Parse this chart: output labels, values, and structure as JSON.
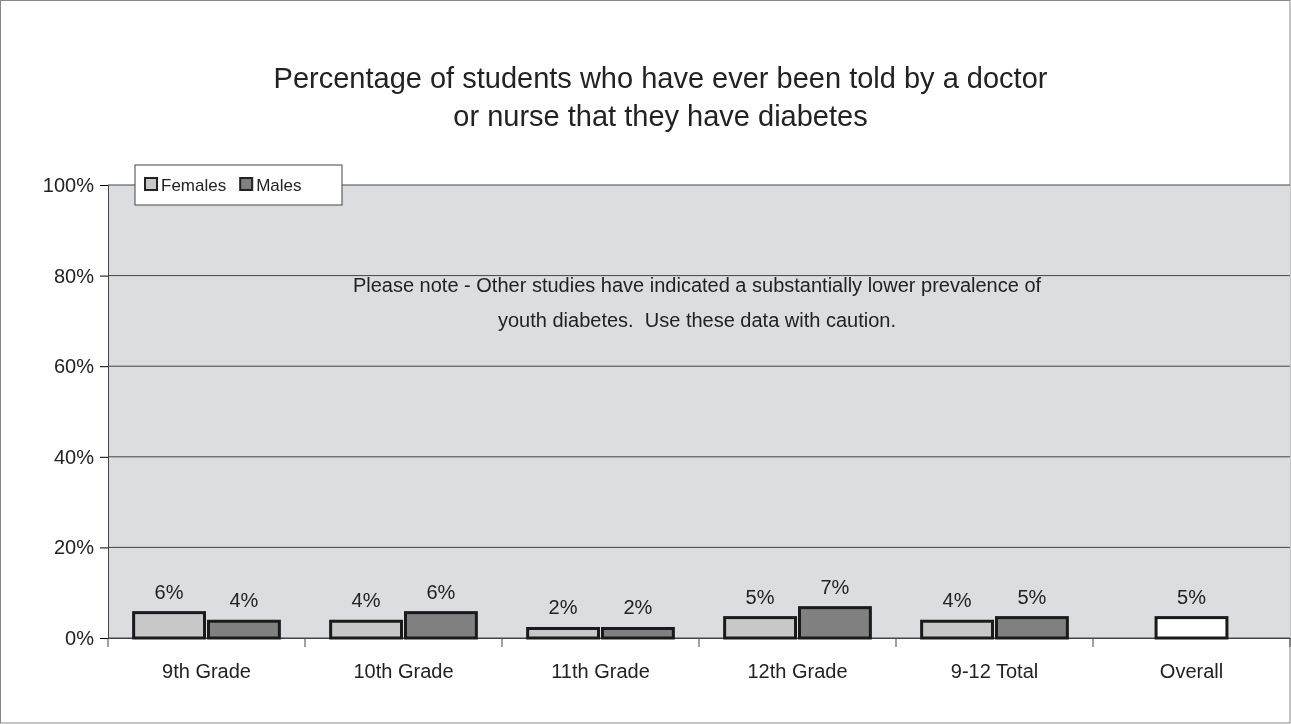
{
  "chart_data": {
    "type": "bar",
    "title": "Percentage of students who have ever been told by a doctor or nurse that they have diabetes",
    "categories": [
      "9th Grade",
      "10th Grade",
      "11th Grade",
      "12th Grade",
      "9-12 Total",
      "Overall"
    ],
    "series": [
      {
        "name": "Females",
        "color": "#c8c8c8",
        "values": [
          5.6,
          3.7,
          2.1,
          4.5,
          3.7,
          null
        ],
        "value_labels": [
          "6%",
          "4%",
          "2%",
          "5%",
          "4%",
          null
        ]
      },
      {
        "name": "Males",
        "color": "#808080",
        "values": [
          3.7,
          5.6,
          2.1,
          6.7,
          4.5,
          null
        ],
        "value_labels": [
          "4%",
          "6%",
          "2%",
          "7%",
          "5%",
          null
        ]
      },
      {
        "color": "#ffffff",
        "values": [
          null,
          null,
          null,
          null,
          null,
          4.5
        ],
        "value_labels": [
          null,
          null,
          null,
          null,
          null,
          "5%"
        ]
      }
    ],
    "ylim": [
      0,
      100
    ],
    "yticks": [
      {
        "value": 0,
        "label": "0%"
      },
      {
        "value": 20,
        "label": "20%"
      },
      {
        "value": 40,
        "label": "40%"
      },
      {
        "value": 60,
        "label": "60%"
      },
      {
        "value": 80,
        "label": "80%"
      },
      {
        "value": 100,
        "label": "100%"
      }
    ],
    "grid": "y",
    "legend": "top left",
    "annotations": [
      "Please note - Other studies have indicated a substantially lower prevalence of youth diabetes.  Use these data with caution."
    ]
  }
}
